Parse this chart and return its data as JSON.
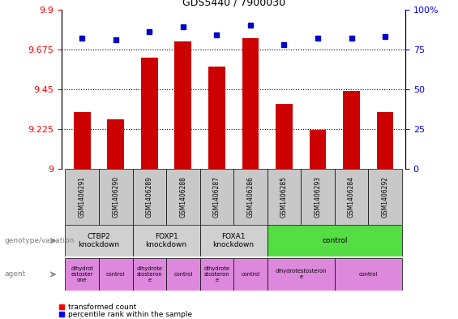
{
  "title": "GDS5440 / 7900030",
  "samples": [
    "GSM1406291",
    "GSM1406290",
    "GSM1406289",
    "GSM1406288",
    "GSM1406287",
    "GSM1406286",
    "GSM1406285",
    "GSM1406293",
    "GSM1406284",
    "GSM1406292"
  ],
  "transformed_counts": [
    9.32,
    9.28,
    9.63,
    9.72,
    9.58,
    9.74,
    9.37,
    9.22,
    9.44,
    9.32
  ],
  "percentile_ranks": [
    82,
    81,
    86,
    89,
    84,
    90,
    78,
    82,
    82,
    83
  ],
  "ylim_left": [
    9.0,
    9.9
  ],
  "ylim_right": [
    0,
    100
  ],
  "yticks_left": [
    9.0,
    9.225,
    9.45,
    9.675,
    9.9
  ],
  "yticks_left_labels": [
    "9",
    "9.225",
    "9.45",
    "9.675",
    "9.9"
  ],
  "yticks_right": [
    0,
    25,
    50,
    75,
    100
  ],
  "yticks_right_labels": [
    "0",
    "25",
    "50",
    "75",
    "100%"
  ],
  "bar_color": "#cc0000",
  "dot_color": "#0000cc",
  "genotype_groups": [
    {
      "label": "CTBP2\nknockdown",
      "start": 0,
      "end": 2,
      "color": "#d0d0d0"
    },
    {
      "label": "FOXP1\nknockdown",
      "start": 2,
      "end": 4,
      "color": "#d0d0d0"
    },
    {
      "label": "FOXA1\nknockdown",
      "start": 4,
      "end": 6,
      "color": "#d0d0d0"
    },
    {
      "label": "control",
      "start": 6,
      "end": 10,
      "color": "#55dd44"
    }
  ],
  "agent_groups": [
    {
      "label": "dihydrot\nestoster\none",
      "start": 0,
      "end": 1,
      "color": "#dd88dd"
    },
    {
      "label": "control",
      "start": 1,
      "end": 2,
      "color": "#dd88dd"
    },
    {
      "label": "dihydrote\nstosteron\ne",
      "start": 2,
      "end": 3,
      "color": "#dd88dd"
    },
    {
      "label": "control",
      "start": 3,
      "end": 4,
      "color": "#dd88dd"
    },
    {
      "label": "dihydrote\nstosteron\ne",
      "start": 4,
      "end": 5,
      "color": "#dd88dd"
    },
    {
      "label": "control",
      "start": 5,
      "end": 6,
      "color": "#dd88dd"
    },
    {
      "label": "dihydrotestosteron\ne",
      "start": 6,
      "end": 8,
      "color": "#dd88dd"
    },
    {
      "label": "control",
      "start": 8,
      "end": 10,
      "color": "#dd88dd"
    }
  ],
  "legend_label_red": "transformed count",
  "legend_label_blue": "percentile rank within the sample",
  "genotype_label": "genotype/variation",
  "agent_label": "agent",
  "sample_box_color": "#c8c8c8"
}
